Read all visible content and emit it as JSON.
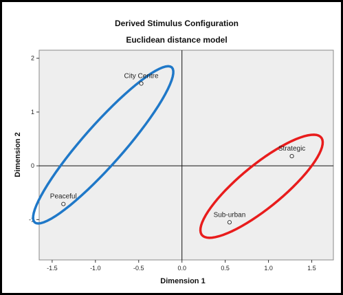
{
  "chart_data": {
    "type": "scatter",
    "title": "Derived Stimulus Configuration",
    "subtitle": "Euclidean distance model",
    "xlabel": "Dimension 1",
    "ylabel": "Dimension 2",
    "xlim": [
      -1.65,
      1.75
    ],
    "ylim": [
      -1.75,
      2.15
    ],
    "xticks": [
      -1.5,
      -1.0,
      -0.5,
      0.0,
      0.5,
      1.0,
      1.5
    ],
    "xtick_labels": [
      "-1.5",
      "-1.0",
      "-0.5",
      "0.0",
      "0.5",
      "1.0",
      "1.5"
    ],
    "yticks": [
      -1,
      0,
      1,
      2
    ],
    "ytick_labels": [
      "-1",
      "0",
      "1",
      "2"
    ],
    "grid": false,
    "reference_lines": {
      "x": 0,
      "y": 0
    },
    "points": [
      {
        "label": "City Centre",
        "x": -0.47,
        "y": 1.53
      },
      {
        "label": "Peaceful",
        "x": -1.37,
        "y": -0.71
      },
      {
        "label": "Strategic",
        "x": 1.27,
        "y": 0.18
      },
      {
        "label": "Sub-urban",
        "x": 0.55,
        "y": -1.05
      }
    ],
    "ellipse_annotations": [
      {
        "color": "#1f78c8",
        "center": [
          -0.91,
          0.39
        ],
        "semi_major": 1.65,
        "semi_minor": 0.27,
        "angle_deg": 62
      },
      {
        "color": "#e81c1c",
        "center": [
          0.92,
          -0.38
        ],
        "semi_major": 1.15,
        "semi_minor": 0.31,
        "angle_deg": 55
      }
    ]
  },
  "colors": {
    "plot_background": "#eeeeee",
    "marker_stroke": "#333333",
    "reference_line": "#111111"
  }
}
